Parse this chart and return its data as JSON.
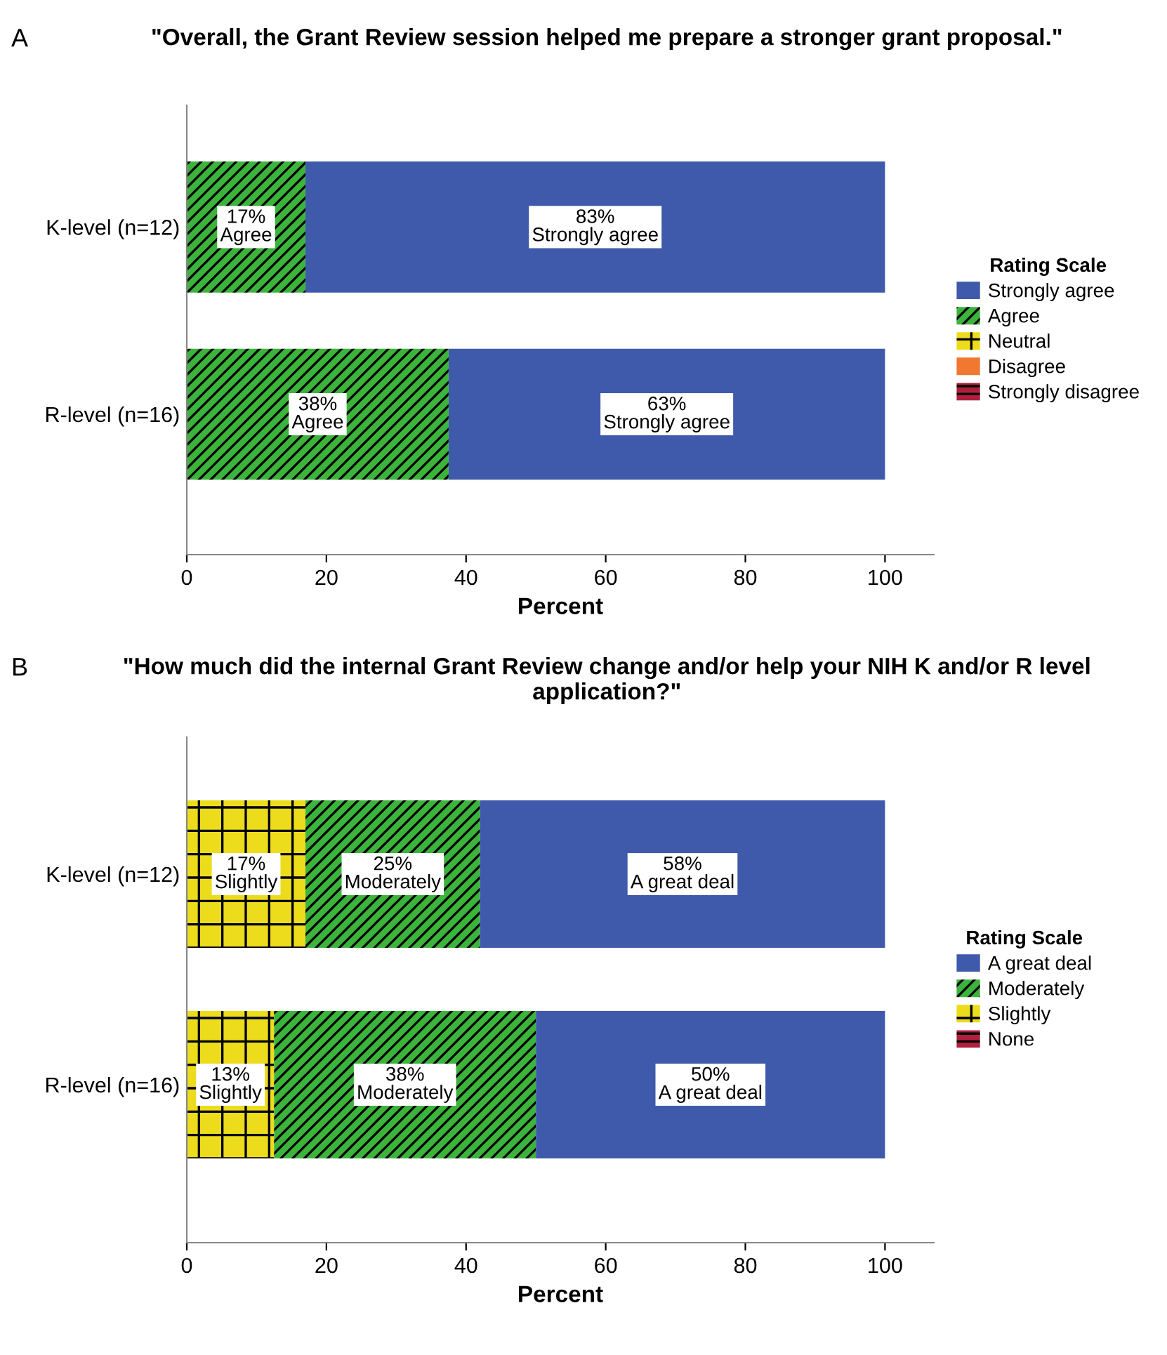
{
  "chart_data": [
    {
      "type": "bar",
      "orientation": "horizontal",
      "stacked": true,
      "title": "\"Overall, the Grant Review session helped me prepare a stronger grant proposal.\"",
      "annotations": [
        "A"
      ],
      "xlabel": "Percent",
      "categories": [
        "K-level (n=12)",
        "R-level (n=16)"
      ],
      "xlim": [
        0,
        107
      ],
      "xticks": [
        0,
        20,
        40,
        60,
        80,
        100
      ],
      "legend": "right",
      "legend_title": "Rating Scale",
      "grid": false,
      "series": [
        {
          "name": "Strongly disagree",
          "color": "#b0203c",
          "values": [
            null,
            null
          ]
        },
        {
          "name": "Disagree",
          "color": "#f07830",
          "values": [
            null,
            null
          ]
        },
        {
          "name": "Neutral",
          "color": "#ecdc1c",
          "values": [
            null,
            null
          ]
        },
        {
          "name": "Agree",
          "color": "#3cb43c",
          "values": [
            17,
            37.5
          ],
          "value_labels": [
            "17%\nAgree",
            "38%\nAgree"
          ]
        },
        {
          "name": "Strongly agree",
          "color": "#3f5aab",
          "values": [
            83,
            62.5
          ],
          "value_labels": [
            "83%\nStrongly agree",
            "63%\nStrongly agree"
          ]
        }
      ]
    },
    {
      "type": "bar",
      "orientation": "horizontal",
      "stacked": true,
      "title": "\"How much did the internal Grant Review change and/or help your NIH K and/or R level application?\"",
      "annotations": [
        "B"
      ],
      "xlabel": "Percent",
      "categories": [
        "K-level (n=12)",
        "R-level (n=16)"
      ],
      "xlim": [
        0,
        107
      ],
      "xticks": [
        0,
        20,
        40,
        60,
        80,
        100
      ],
      "legend": "right",
      "legend_title": "Rating Scale",
      "grid": false,
      "series": [
        {
          "name": "None",
          "color": "#b0203c",
          "values": [
            null,
            null
          ]
        },
        {
          "name": "Slightly",
          "color": "#ecdc1c",
          "values": [
            17,
            12.5
          ],
          "value_labels": [
            "17%\nSlightly",
            "13%\nSlightly"
          ]
        },
        {
          "name": "Moderately",
          "color": "#3cb43c",
          "values": [
            25,
            37.5
          ],
          "value_labels": [
            "25%\nModerately",
            "38%\nModerately"
          ]
        },
        {
          "name": "A great deal",
          "color": "#3f5aab",
          "values": [
            58,
            50
          ],
          "value_labels": [
            "58%\nA great deal",
            "50%\nA great deal"
          ]
        }
      ]
    }
  ]
}
